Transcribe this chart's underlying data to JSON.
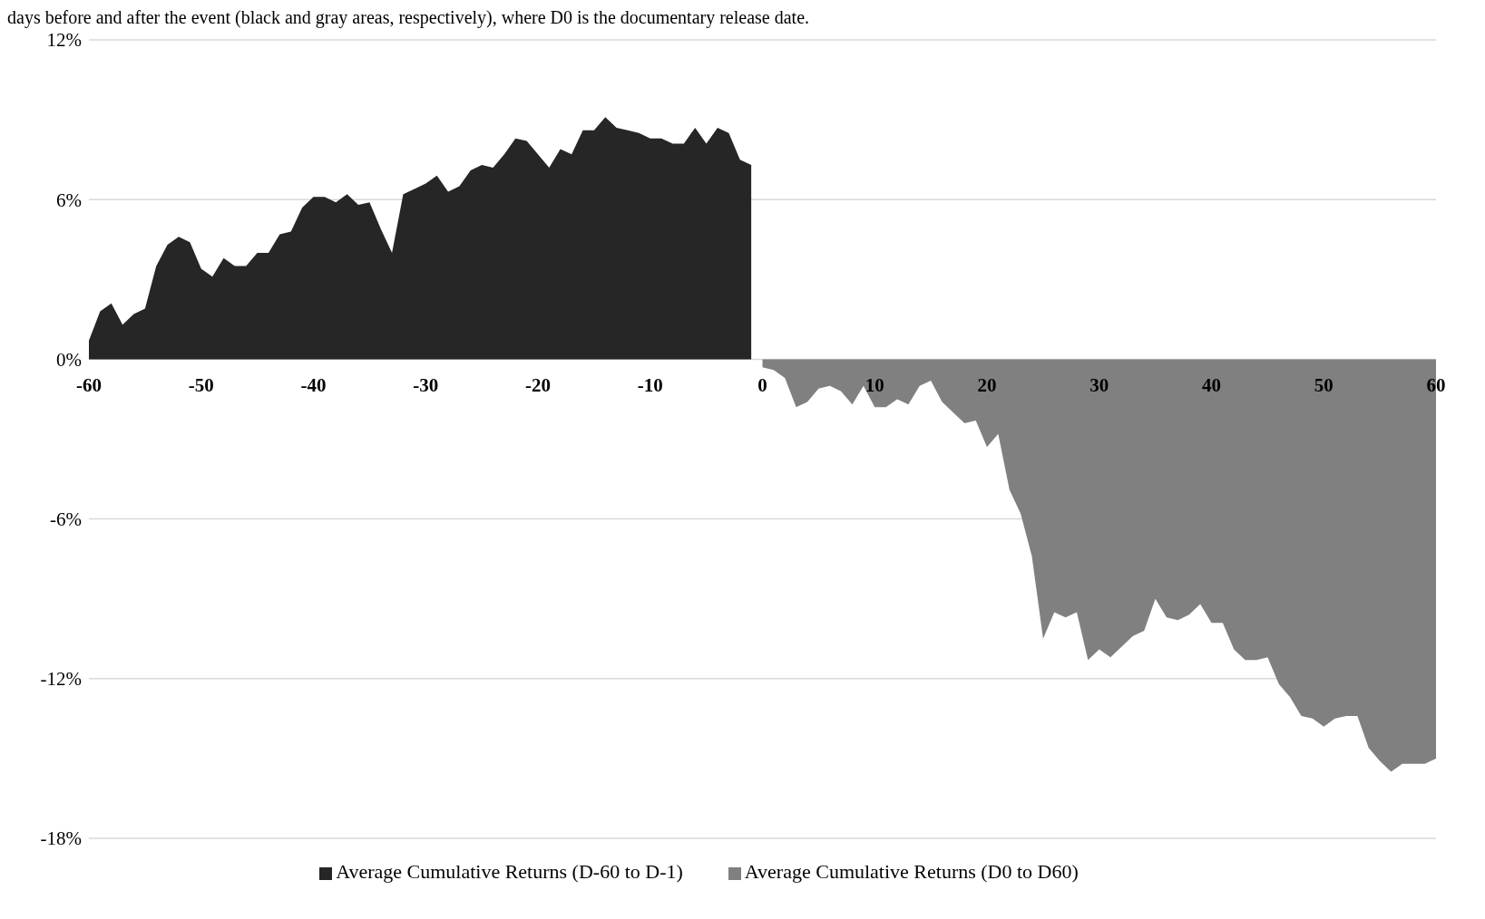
{
  "chart_data": {
    "type": "area",
    "annotations": [
      "days before and after the event (black and gray areas, respectively), where D0 is the documentary release date."
    ],
    "xlim": [
      -60,
      60
    ],
    "xticks": [
      -60,
      -50,
      -40,
      -30,
      -20,
      -10,
      0,
      10,
      20,
      30,
      40,
      50,
      60
    ],
    "ylim": [
      -18,
      12
    ],
    "yticks": [
      {
        "value": -18,
        "label": "-18%"
      },
      {
        "value": -12,
        "label": "-12%"
      },
      {
        "value": -6,
        "label": "-6%"
      },
      {
        "value": 0,
        "label": "0%"
      },
      {
        "value": 6,
        "label": "6%"
      },
      {
        "value": 12,
        "label": "12%"
      }
    ],
    "grid": "y",
    "legend": "bottom",
    "series": [
      {
        "name": "Average Cumulative Returns (D-60 to D-1)",
        "color": "#262626",
        "x": [
          -60,
          -59,
          -58,
          -57,
          -56,
          -55,
          -54,
          -53,
          -52,
          -51,
          -50,
          -49,
          -48,
          -47,
          -46,
          -45,
          -44,
          -43,
          -42,
          -41,
          -40,
          -39,
          -38,
          -37,
          -36,
          -35,
          -34,
          -33,
          -32,
          -31,
          -30,
          -29,
          -28,
          -27,
          -26,
          -25,
          -24,
          -23,
          -22,
          -21,
          -20,
          -19,
          -18,
          -17,
          -16,
          -15,
          -14,
          -13,
          -12,
          -11,
          -10,
          -9,
          -8,
          -7,
          -6,
          -5,
          -4,
          -3,
          -2,
          -1
        ],
        "values": [
          0.7,
          1.8,
          2.1,
          1.3,
          1.7,
          1.9,
          3.5,
          4.3,
          4.6,
          4.4,
          3.4,
          3.1,
          3.8,
          3.5,
          3.5,
          4.0,
          4.0,
          4.7,
          4.8,
          5.7,
          6.1,
          6.1,
          5.9,
          6.2,
          5.8,
          5.9,
          4.9,
          4.0,
          6.2,
          6.4,
          6.6,
          6.9,
          6.3,
          6.5,
          7.1,
          7.3,
          7.2,
          7.7,
          8.3,
          8.2,
          7.7,
          7.2,
          7.9,
          7.7,
          8.6,
          8.6,
          9.1,
          8.7,
          8.6,
          8.5,
          8.3,
          8.3,
          8.1,
          8.1,
          8.7,
          8.1,
          8.7,
          8.5,
          7.5,
          7.3
        ]
      },
      {
        "name": "Average Cumulative Returns (D0 to D60)",
        "color": "#808080",
        "x": [
          0,
          1,
          2,
          3,
          4,
          5,
          6,
          7,
          8,
          9,
          10,
          11,
          12,
          13,
          14,
          15,
          16,
          17,
          18,
          19,
          20,
          21,
          22,
          23,
          24,
          25,
          26,
          27,
          28,
          29,
          30,
          31,
          32,
          33,
          34,
          35,
          36,
          37,
          38,
          39,
          40,
          41,
          42,
          43,
          44,
          45,
          46,
          47,
          48,
          49,
          50,
          51,
          52,
          53,
          54,
          55,
          56,
          57,
          58,
          59,
          60
        ],
        "values": [
          -0.3,
          -0.4,
          -0.7,
          -1.8,
          -1.6,
          -1.1,
          -1.0,
          -1.2,
          -1.7,
          -1.0,
          -1.8,
          -1.8,
          -1.5,
          -1.7,
          -1.0,
          -0.8,
          -1.6,
          -2.0,
          -2.4,
          -2.3,
          -3.3,
          -2.8,
          -4.9,
          -5.8,
          -7.4,
          -10.5,
          -9.5,
          -9.7,
          -9.5,
          -11.3,
          -10.9,
          -11.2,
          -10.8,
          -10.4,
          -10.2,
          -9.0,
          -9.7,
          -9.8,
          -9.6,
          -9.2,
          -9.9,
          -9.9,
          -10.9,
          -11.3,
          -11.3,
          -11.2,
          -12.2,
          -12.7,
          -13.4,
          -13.5,
          -13.8,
          -13.5,
          -13.4,
          -13.4,
          -14.6,
          -15.1,
          -15.5,
          -15.2,
          -15.2,
          -15.2,
          -15.0
        ]
      }
    ]
  }
}
